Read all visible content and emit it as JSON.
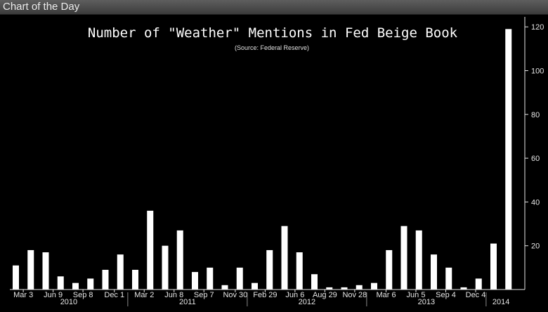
{
  "header": {
    "title": "Chart of the Day"
  },
  "chart_data": {
    "type": "bar",
    "title": "Number of \"Weather\" Mentions in Fed Beige Book",
    "subtitle": "(Source: Federal Reserve)",
    "ylim": [
      0,
      122
    ],
    "yticks": [
      20,
      40,
      60,
      80,
      100,
      120
    ],
    "y_axis_side": "right",
    "grid": false,
    "colors": {
      "background": "#000000",
      "bar": "#ffffff",
      "text": "#e6e6e6"
    },
    "values": [
      11,
      18,
      17,
      6,
      3,
      5,
      9,
      16,
      9,
      36,
      20,
      27,
      8,
      10,
      2,
      10,
      3,
      18,
      29,
      17,
      7,
      1,
      1,
      2,
      3,
      18,
      29,
      27,
      16,
      10,
      1,
      5,
      21,
      119
    ],
    "date_labels": [
      {
        "label": "Mar 3",
        "index": 0.5
      },
      {
        "label": "Jun 9",
        "index": 2.5
      },
      {
        "label": "Sep 8",
        "index": 4.5
      },
      {
        "label": "Dec 1",
        "index": 6.6
      },
      {
        "label": "Mar 2",
        "index": 8.6
      },
      {
        "label": "Jun 8",
        "index": 10.6
      },
      {
        "label": "Sep 7",
        "index": 12.6
      },
      {
        "label": "Nov 30",
        "index": 14.7
      },
      {
        "label": "Feb 29",
        "index": 16.7
      },
      {
        "label": "Jun 6",
        "index": 18.7
      },
      {
        "label": "Aug 29",
        "index": 20.7
      },
      {
        "label": "Nov 28",
        "index": 22.7
      },
      {
        "label": "Mar 6",
        "index": 24.8
      },
      {
        "label": "Jun 5",
        "index": 26.8
      },
      {
        "label": "Sep 4",
        "index": 28.8
      },
      {
        "label": "Dec 4",
        "index": 30.8
      }
    ],
    "years": [
      {
        "label": "2010",
        "start": -0.5,
        "end": 7.5
      },
      {
        "label": "2011",
        "start": 7.5,
        "end": 15.5
      },
      {
        "label": "2012",
        "start": 15.5,
        "end": 23.5
      },
      {
        "label": "2013",
        "start": 23.5,
        "end": 31.5
      },
      {
        "label": "2014",
        "start": 31.5,
        "end": 33.5
      }
    ]
  }
}
